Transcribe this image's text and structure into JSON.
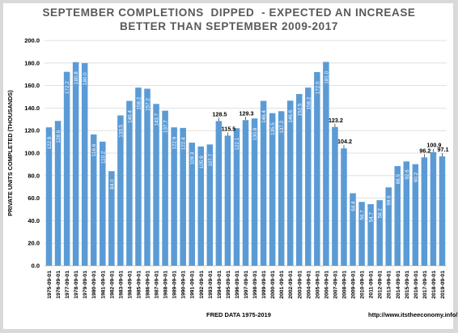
{
  "title_line1": "SEPTEMBER COMPLETIONS  DIPPED  - EXPECTED AN INCREASE",
  "title_line2": "BETTER THAN SEPTEMBER 2009-2017",
  "source_note": "FRED DATA 1975-2019",
  "url_note": "http://www.itstheeconomy.info/",
  "colors": {
    "bar": "#5b9bd5",
    "grid": "#d9d9d9",
    "axis_text": "#404040",
    "bar_label": "#ffffff",
    "callout": "#000000"
  },
  "chart_data": {
    "type": "bar",
    "title": "SEPTEMBER COMPLETIONS  DIPPED  - EXPECTED AN INCREASE BETTER THAN SEPTEMBER 2009-2017",
    "xlabel": "",
    "ylabel": "PRIVATE UNITS COMPLETED (THOUSANDS)",
    "ylim": [
      0,
      200
    ],
    "yticks": [
      "0.0",
      "20.0",
      "40.0",
      "60.0",
      "80.0",
      "100.0",
      "120.0",
      "140.0",
      "160.0",
      "180.0",
      "200.0"
    ],
    "grid": true,
    "categories": [
      "1975-09-01",
      "1976-09-01",
      "1977-09-01",
      "1978-09-01",
      "1979-09-01",
      "1980-09-01",
      "1981-09-01",
      "1982-09-01",
      "1983-09-01",
      "1984-09-01",
      "1985-09-01",
      "1986-09-01",
      "1987-09-01",
      "1988-09-01",
      "1989-09-01",
      "1990-09-01",
      "1991-09-01",
      "1992-09-01",
      "1993-09-01",
      "1994-09-01",
      "1995-09-01",
      "1996-09-01",
      "1997-09-01",
      "1998-09-01",
      "1999-09-01",
      "2000-09-01",
      "2001-09-01",
      "2002-09-01",
      "2003-09-01",
      "2004-09-01",
      "2005-09-01",
      "2006-09-01",
      "2007-09-01",
      "2008-09-01",
      "2009-09-01",
      "2010-09-01",
      "2011-09-01",
      "2012-09-01",
      "2013-09-01",
      "2014-09-01",
      "2015-09-01",
      "2016-09-01",
      "2017-09-01",
      "2018-09-01",
      "2019-09-01"
    ],
    "values": [
      122.9,
      128.6,
      172.2,
      180.8,
      180.0,
      116.6,
      110.2,
      84.0,
      133.5,
      146.4,
      158.2,
      157.2,
      143.7,
      137.7,
      122.9,
      122.4,
      109.3,
      105.9,
      107.7,
      128.5,
      115.5,
      122.1,
      129.3,
      130.8,
      146.4,
      135.5,
      137.2,
      146.6,
      152.5,
      158.2,
      172.0,
      181.0,
      123.2,
      104.2,
      64.4,
      56.7,
      54.7,
      58.2,
      69.6,
      88.5,
      92.6,
      90.2,
      96.2,
      100.9,
      97.1
    ],
    "bar_labels": [
      "122.9",
      "128.6",
      "172.2",
      "180.8",
      "180.0",
      "116.6",
      "110.2",
      "84.0",
      "133.5",
      "146.4",
      "158.2",
      "157.2",
      "143.7",
      "137.7",
      "122.9",
      "122.4",
      "109.3",
      "105.9",
      "107.7",
      "",
      "",
      "122.1",
      "",
      "130.8",
      "146.4",
      "135.5",
      "137.2",
      "146.6",
      "152.5",
      "158.2",
      "172.0",
      "181.0",
      "",
      "",
      "64.4",
      "56.7",
      "54.7",
      "58.2",
      "69.6",
      "88.5",
      "92.6",
      "90.2",
      "",
      "",
      ""
    ],
    "callouts": [
      "",
      "",
      "",
      "",
      "",
      "",
      "",
      "",
      "",
      "",
      "",
      "",
      "",
      "",
      "",
      "",
      "",
      "",
      "",
      "128.5",
      "115.5",
      "",
      "129.3",
      "",
      "",
      "",
      "",
      "",
      "",
      "",
      "",
      "",
      "123.2",
      "104.2",
      "",
      "",
      "",
      "",
      "",
      "",
      "",
      "",
      "96.2",
      "100.9",
      "97.1"
    ]
  }
}
